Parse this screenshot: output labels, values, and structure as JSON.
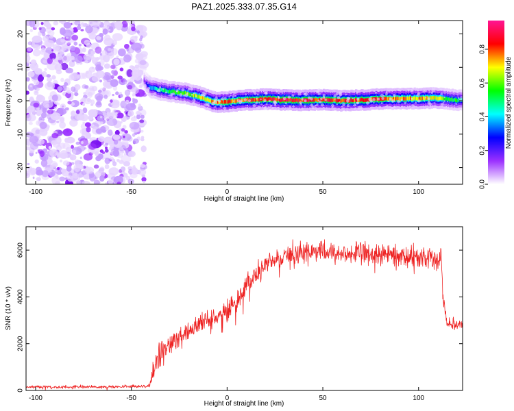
{
  "figure_title": "PAZ1.2025.333.07.35.G14",
  "chart_data": [
    {
      "type": "heatmap",
      "title": "PAZ1.2025.333.07.35.G14",
      "xlabel": "Height of straight line (km)",
      "ylabel": "Frequency (Hz)",
      "xlim": [
        -105,
        123
      ],
      "ylim": [
        -25,
        24
      ],
      "xticks": [
        -100,
        -50,
        0,
        50,
        100
      ],
      "yticks": [
        -20,
        -10,
        0,
        10,
        20
      ],
      "colorbar": {
        "label": "Normalized spectral amplitude",
        "range": [
          0,
          0.97
        ],
        "ticks": [
          0.0,
          0.2,
          0.4,
          0.6,
          0.8
        ],
        "tick_labels": [
          "0.0",
          "0.2",
          "0.4",
          "0.6",
          "0.8"
        ],
        "colors": [
          "#ffffff",
          "#9b30ff",
          "#0000ff",
          "#00ffff",
          "#00ff00",
          "#ffff00",
          "#ff0000",
          "#ff1493"
        ]
      },
      "noise_region": {
        "x_range": [
          -105,
          -43
        ],
        "y_range": [
          -25,
          24
        ],
        "level": 0.05
      },
      "ridge": {
        "description": "dominant frequency track",
        "x": [
          -43,
          -40,
          -35,
          -30,
          -25,
          -20,
          -15,
          -10,
          -5,
          0,
          10,
          20,
          30,
          40,
          50,
          60,
          70,
          80,
          90,
          100,
          110,
          115,
          120,
          123
        ],
        "y": [
          6.0,
          4.0,
          3.3,
          2.8,
          2.5,
          2.0,
          1.3,
          0.3,
          -0.5,
          -0.3,
          0.2,
          0.5,
          0.2,
          0.1,
          0.3,
          0.0,
          0.2,
          0.5,
          0.6,
          0.7,
          0.8,
          0.5,
          0.2,
          0.1
        ],
        "amplitude": [
          0.15,
          0.35,
          0.5,
          0.55,
          0.6,
          0.65,
          0.7,
          0.75,
          0.8,
          0.82,
          0.85,
          0.88,
          0.9,
          0.9,
          0.88,
          0.88,
          0.85,
          0.85,
          0.8,
          0.78,
          0.72,
          0.6,
          0.55,
          0.5
        ],
        "bandwidth_hz": 1.2
      }
    },
    {
      "type": "line",
      "xlabel": "Height of straight line (km)",
      "ylabel": "SNR (10 * v/v)",
      "xlim": [
        -105,
        123
      ],
      "ylim": [
        0,
        7000
      ],
      "xticks": [
        -100,
        -50,
        0,
        50,
        100
      ],
      "yticks": [
        0,
        2000,
        4000,
        6000
      ],
      "series": [
        {
          "name": "SNR",
          "color": "#ee2222",
          "x": [
            -105,
            -60,
            -42,
            -40,
            -38,
            -35,
            -32,
            -30,
            -25,
            -20,
            -15,
            -10,
            -5,
            0,
            5,
            10,
            15,
            20,
            25,
            30,
            40,
            50,
            60,
            70,
            80,
            90,
            100,
            110,
            112,
            113,
            115,
            120,
            123
          ],
          "mean": [
            150,
            150,
            180,
            300,
            900,
            1500,
            1700,
            1900,
            2300,
            2600,
            2800,
            2950,
            3100,
            3400,
            3900,
            4500,
            5000,
            5300,
            5500,
            5800,
            5900,
            5900,
            5850,
            5850,
            5800,
            5750,
            5700,
            5650,
            5600,
            3800,
            2900,
            2850,
            2850
          ],
          "noise": [
            60,
            60,
            60,
            100,
            500,
            600,
            600,
            500,
            450,
            400,
            420,
            450,
            450,
            450,
            450,
            450,
            450,
            450,
            420,
            420,
            420,
            420,
            400,
            400,
            420,
            420,
            400,
            400,
            400,
            300,
            220,
            220,
            220
          ]
        }
      ]
    }
  ]
}
